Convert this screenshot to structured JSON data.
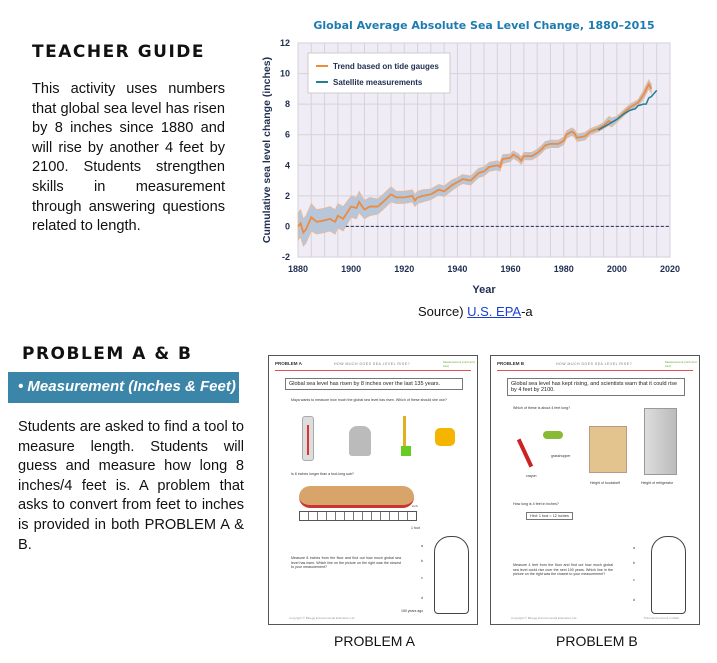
{
  "teacher_guide": {
    "title": "TEACHER GUIDE",
    "text": "This activity uses numbers that global sea level has risen by 8 inches since 1880 and will rise by another 4 feet by 2100. Students strengthen skills in measurement through answering questions related to length."
  },
  "source": {
    "prefix": "Source) ",
    "link": "U.S. EPA",
    "suffix": "-a"
  },
  "problems": {
    "title": "PROBLEM A & B",
    "topic": "•  Measurement (Inches & Feet)",
    "text": "Students are asked to find a tool to measure length. Students will guess and measure how long 8 inches/4 feet is.  A problem that asks to convert from feet to inches is provided in both PROBLEM A & B."
  },
  "worksheet_a": {
    "caption": "PROBLEM A",
    "header": "PROBLEM A",
    "subtitle": "HOW MUCH DOES SEA LEVEL RISE?",
    "tag": "Measurement (inch and foot)",
    "box": "Global sea level has risen by 8 inches over the last 135 years.",
    "q1": "Maya wants to measure how much the global sea level has risen.  Which of these should she use?",
    "q2": "Is 8 inches longer than a foot-long sub?",
    "ruler_unit": "inch",
    "ruler_foot": "1 foot",
    "q3": "Measure 8 inches from the floor and find out how much global sea level has risen. Which line on the picture on the right was the closest to your measurement?",
    "labels": [
      "a",
      "b",
      "c",
      "d"
    ],
    "years": "150 years ago",
    "copyright": "Copyright © Bluegg Environmental Education Ltd."
  },
  "worksheet_b": {
    "caption": "PROBLEM B",
    "header": "PROBLEM B",
    "subtitle": "HOW MUCH DOES SEA LEVEL RISE?",
    "tag": "Measurement (inch and foot)",
    "box": "Global sea level has kept rising, and scientists warn that it could rise by 4 feet by 2100.",
    "q1": "Which of these is about 4 feet long?",
    "items": [
      "crayon",
      "grasshopper",
      "Height of bookshelf",
      "Height of refrigerator"
    ],
    "q2": "How long is 4 feet in inches?",
    "hint": "Hint: 1 foot = 12 inches",
    "q3": "Measure 4 feet from the floor and find out how much global sea level could rise over the next 100 years. Which line in the picture on the right was the closest to your measurement?",
    "labels": [
      "a",
      "b",
      "c",
      "d"
    ],
    "copyright": "Copyright © Bluegg Environmental Education Ltd.",
    "footer_right": "Think Environment in Math"
  },
  "chart_data": {
    "type": "line",
    "title": "Global Average Absolute Sea Level Change, 1880–2015",
    "xlabel": "Year",
    "ylabel": "Cumulative sea level change (inches)",
    "xlim": [
      1880,
      2020
    ],
    "ylim": [
      -2,
      12
    ],
    "xticks": [
      1880,
      1900,
      1920,
      1940,
      1960,
      1980,
      2000,
      2020
    ],
    "yticks": [
      -2,
      0,
      2,
      4,
      6,
      8,
      10,
      12
    ],
    "grid": true,
    "legend": "top-left",
    "colors": {
      "tide": "#f08a3c",
      "satellite": "#1f7f99",
      "band": "#b7c6d9",
      "plot_bg": "#f0ecf5",
      "title": "#1d7bb0",
      "axis": "#1f2d4f"
    },
    "series": [
      {
        "name": "Trend based on tide gauges",
        "x": [
          1880,
          1881,
          1882,
          1883,
          1885,
          1887,
          1890,
          1892,
          1894,
          1895,
          1897,
          1900,
          1902,
          1903,
          1905,
          1907,
          1910,
          1912,
          1915,
          1917,
          1920,
          1923,
          1924,
          1925,
          1927,
          1930,
          1933,
          1935,
          1938,
          1940,
          1942,
          1945,
          1948,
          1950,
          1952,
          1955,
          1956,
          1957,
          1960,
          1961,
          1963,
          1964,
          1965,
          1968,
          1970,
          1972,
          1973,
          1975,
          1978,
          1980,
          1981,
          1983,
          1984,
          1985,
          1988,
          1990,
          1993,
          1995,
          1997,
          1998,
          2000,
          2003,
          2005,
          2008,
          2010,
          2012,
          2013
        ],
        "y": [
          0,
          0.2,
          -0.4,
          -0.2,
          0.6,
          0.3,
          0.4,
          0.5,
          0.3,
          0.7,
          0.5,
          1.3,
          1.2,
          1.6,
          1.1,
          1.3,
          1.3,
          1.6,
          2.1,
          1.9,
          1.9,
          2.0,
          1.7,
          1.9,
          2.0,
          2.1,
          2.4,
          2.3,
          2.7,
          2.9,
          3.1,
          3.0,
          3.5,
          3.6,
          3.9,
          4.0,
          3.9,
          4.4,
          4.5,
          4.7,
          4.5,
          4.3,
          4.6,
          4.6,
          4.8,
          5.1,
          5.3,
          5.4,
          5.4,
          5.6,
          6.0,
          6.2,
          6.1,
          5.8,
          5.9,
          6.2,
          6.4,
          6.6,
          6.9,
          6.8,
          7.0,
          7.5,
          7.8,
          8.1,
          8.6,
          9.3,
          9.0
        ],
        "uncertainty": [
          0.9,
          0.9,
          0.9,
          0.9,
          0.9,
          0.8,
          0.8,
          0.8,
          0.8,
          0.8,
          0.8,
          0.7,
          0.7,
          0.7,
          0.6,
          0.6,
          0.5,
          0.5,
          0.5,
          0.4,
          0.4,
          0.4,
          0.4,
          0.4,
          0.4,
          0.35,
          0.35,
          0.35,
          0.35,
          0.3,
          0.3,
          0.3,
          0.3,
          0.3,
          0.3,
          0.3,
          0.3,
          0.3,
          0.25,
          0.25,
          0.25,
          0.25,
          0.25,
          0.25,
          0.25,
          0.25,
          0.25,
          0.25,
          0.25,
          0.25,
          0.25,
          0.25,
          0.25,
          0.25,
          0.25,
          0.2,
          0.2,
          0.2,
          0.3,
          0.3,
          0.2,
          0.2,
          0.2,
          0.2,
          0.3,
          0.3,
          0.3
        ]
      },
      {
        "name": "Satellite measurements",
        "x": [
          1993,
          1995,
          1998,
          2000,
          2003,
          2005,
          2007,
          2008,
          2010,
          2011,
          2012,
          2013,
          2015
        ],
        "y": [
          6.3,
          6.5,
          6.8,
          7.0,
          7.4,
          7.6,
          7.7,
          7.9,
          8.0,
          8.0,
          8.4,
          8.5,
          8.9
        ]
      }
    ],
    "reference_line": {
      "y": 0,
      "from": 1898,
      "style": "dashed"
    }
  }
}
